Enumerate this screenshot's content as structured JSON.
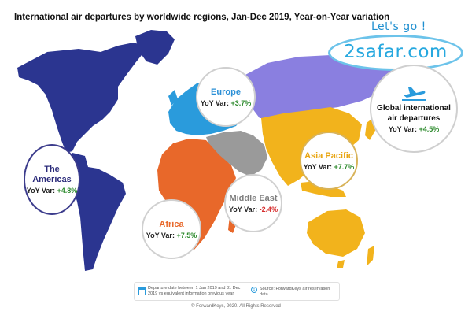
{
  "title": "International air departures by worldwide regions, Jan-Dec 2019, Year-on-Year variation",
  "brand": {
    "tagline": "Let's go !",
    "name": "2safar.com",
    "colors": {
      "tagline": "#1f8fd0",
      "name": "#26a8df",
      "ring": "#6cc3ea"
    }
  },
  "regions": {
    "europe": {
      "name": "Europe",
      "yoy_label": "YoY Var:",
      "yoy_value": "+3.7%",
      "value": 3.7,
      "color": "#2a9bdc"
    },
    "americas": {
      "name": "The Americas",
      "yoy_label": "YoY Var:",
      "yoy_value": "+4.8%",
      "value": 4.8,
      "color": "#2b3590"
    },
    "africa": {
      "name": "Africa",
      "yoy_label": "YoY Var:",
      "yoy_value": "+7.5%",
      "value": 7.5,
      "color": "#e8682a"
    },
    "middle_east": {
      "name": "Middle East",
      "yoy_label": "YoY Var:",
      "yoy_value": "-2.4%",
      "value": -2.4,
      "color": "#9a9a9a"
    },
    "asia_pacific": {
      "name": "Asia Pacific",
      "yoy_label": "YoY Var:",
      "yoy_value": "+7.7%",
      "value": 7.7,
      "color": "#f2b31c"
    },
    "global": {
      "name_line1": "Global international",
      "name_line2": "air departures",
      "yoy_label": "YoY Var:",
      "yoy_value": "+4.5%",
      "value": 4.5
    }
  },
  "other_land_color": "#8a7fe0",
  "footer": {
    "left_note": "Departure date between 1 Jan 2019 and 31 Dec 2019 vs equivalent information previous year.",
    "right_note": "Source: ForwardKeys air reservation data."
  },
  "copyright": "© ForwardKeys, 2020. All Rights Reserved",
  "icons": {
    "global": "airplane-icon",
    "footer_left": "calendar-icon",
    "footer_right": "info-icon"
  }
}
